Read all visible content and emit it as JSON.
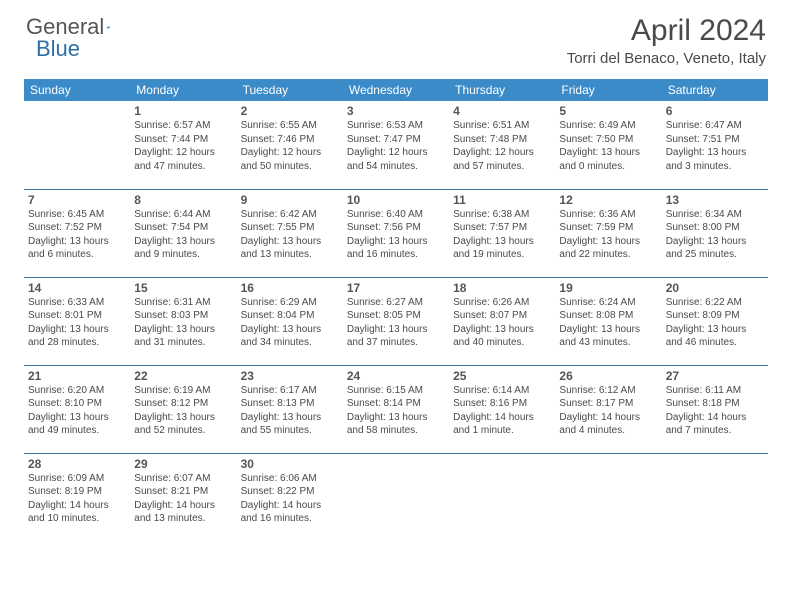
{
  "logo": {
    "text_a": "General",
    "text_b": "Blue",
    "text_a_color": "#6a6a6a",
    "text_b_color": "#2f6fa8",
    "icon_color": "#2f6fa8"
  },
  "title": "April 2024",
  "location": "Torri del Benaco, Veneto, Italy",
  "colors": {
    "header_bg": "#3b8bc9",
    "header_text": "#ffffff",
    "row_border": "#3b6fa0",
    "day_num": "#555555",
    "body_text": "#4a4a4a"
  },
  "day_headers": [
    "Sunday",
    "Monday",
    "Tuesday",
    "Wednesday",
    "Thursday",
    "Friday",
    "Saturday"
  ],
  "weeks": [
    [
      {
        "n": "",
        "t": ""
      },
      {
        "n": "1",
        "t": "Sunrise: 6:57 AM\nSunset: 7:44 PM\nDaylight: 12 hours and 47 minutes."
      },
      {
        "n": "2",
        "t": "Sunrise: 6:55 AM\nSunset: 7:46 PM\nDaylight: 12 hours and 50 minutes."
      },
      {
        "n": "3",
        "t": "Sunrise: 6:53 AM\nSunset: 7:47 PM\nDaylight: 12 hours and 54 minutes."
      },
      {
        "n": "4",
        "t": "Sunrise: 6:51 AM\nSunset: 7:48 PM\nDaylight: 12 hours and 57 minutes."
      },
      {
        "n": "5",
        "t": "Sunrise: 6:49 AM\nSunset: 7:50 PM\nDaylight: 13 hours and 0 minutes."
      },
      {
        "n": "6",
        "t": "Sunrise: 6:47 AM\nSunset: 7:51 PM\nDaylight: 13 hours and 3 minutes."
      }
    ],
    [
      {
        "n": "7",
        "t": "Sunrise: 6:45 AM\nSunset: 7:52 PM\nDaylight: 13 hours and 6 minutes."
      },
      {
        "n": "8",
        "t": "Sunrise: 6:44 AM\nSunset: 7:54 PM\nDaylight: 13 hours and 9 minutes."
      },
      {
        "n": "9",
        "t": "Sunrise: 6:42 AM\nSunset: 7:55 PM\nDaylight: 13 hours and 13 minutes."
      },
      {
        "n": "10",
        "t": "Sunrise: 6:40 AM\nSunset: 7:56 PM\nDaylight: 13 hours and 16 minutes."
      },
      {
        "n": "11",
        "t": "Sunrise: 6:38 AM\nSunset: 7:57 PM\nDaylight: 13 hours and 19 minutes."
      },
      {
        "n": "12",
        "t": "Sunrise: 6:36 AM\nSunset: 7:59 PM\nDaylight: 13 hours and 22 minutes."
      },
      {
        "n": "13",
        "t": "Sunrise: 6:34 AM\nSunset: 8:00 PM\nDaylight: 13 hours and 25 minutes."
      }
    ],
    [
      {
        "n": "14",
        "t": "Sunrise: 6:33 AM\nSunset: 8:01 PM\nDaylight: 13 hours and 28 minutes."
      },
      {
        "n": "15",
        "t": "Sunrise: 6:31 AM\nSunset: 8:03 PM\nDaylight: 13 hours and 31 minutes."
      },
      {
        "n": "16",
        "t": "Sunrise: 6:29 AM\nSunset: 8:04 PM\nDaylight: 13 hours and 34 minutes."
      },
      {
        "n": "17",
        "t": "Sunrise: 6:27 AM\nSunset: 8:05 PM\nDaylight: 13 hours and 37 minutes."
      },
      {
        "n": "18",
        "t": "Sunrise: 6:26 AM\nSunset: 8:07 PM\nDaylight: 13 hours and 40 minutes."
      },
      {
        "n": "19",
        "t": "Sunrise: 6:24 AM\nSunset: 8:08 PM\nDaylight: 13 hours and 43 minutes."
      },
      {
        "n": "20",
        "t": "Sunrise: 6:22 AM\nSunset: 8:09 PM\nDaylight: 13 hours and 46 minutes."
      }
    ],
    [
      {
        "n": "21",
        "t": "Sunrise: 6:20 AM\nSunset: 8:10 PM\nDaylight: 13 hours and 49 minutes."
      },
      {
        "n": "22",
        "t": "Sunrise: 6:19 AM\nSunset: 8:12 PM\nDaylight: 13 hours and 52 minutes."
      },
      {
        "n": "23",
        "t": "Sunrise: 6:17 AM\nSunset: 8:13 PM\nDaylight: 13 hours and 55 minutes."
      },
      {
        "n": "24",
        "t": "Sunrise: 6:15 AM\nSunset: 8:14 PM\nDaylight: 13 hours and 58 minutes."
      },
      {
        "n": "25",
        "t": "Sunrise: 6:14 AM\nSunset: 8:16 PM\nDaylight: 14 hours and 1 minute."
      },
      {
        "n": "26",
        "t": "Sunrise: 6:12 AM\nSunset: 8:17 PM\nDaylight: 14 hours and 4 minutes."
      },
      {
        "n": "27",
        "t": "Sunrise: 6:11 AM\nSunset: 8:18 PM\nDaylight: 14 hours and 7 minutes."
      }
    ],
    [
      {
        "n": "28",
        "t": "Sunrise: 6:09 AM\nSunset: 8:19 PM\nDaylight: 14 hours and 10 minutes."
      },
      {
        "n": "29",
        "t": "Sunrise: 6:07 AM\nSunset: 8:21 PM\nDaylight: 14 hours and 13 minutes."
      },
      {
        "n": "30",
        "t": "Sunrise: 6:06 AM\nSunset: 8:22 PM\nDaylight: 14 hours and 16 minutes."
      },
      {
        "n": "",
        "t": ""
      },
      {
        "n": "",
        "t": ""
      },
      {
        "n": "",
        "t": ""
      },
      {
        "n": "",
        "t": ""
      }
    ]
  ]
}
